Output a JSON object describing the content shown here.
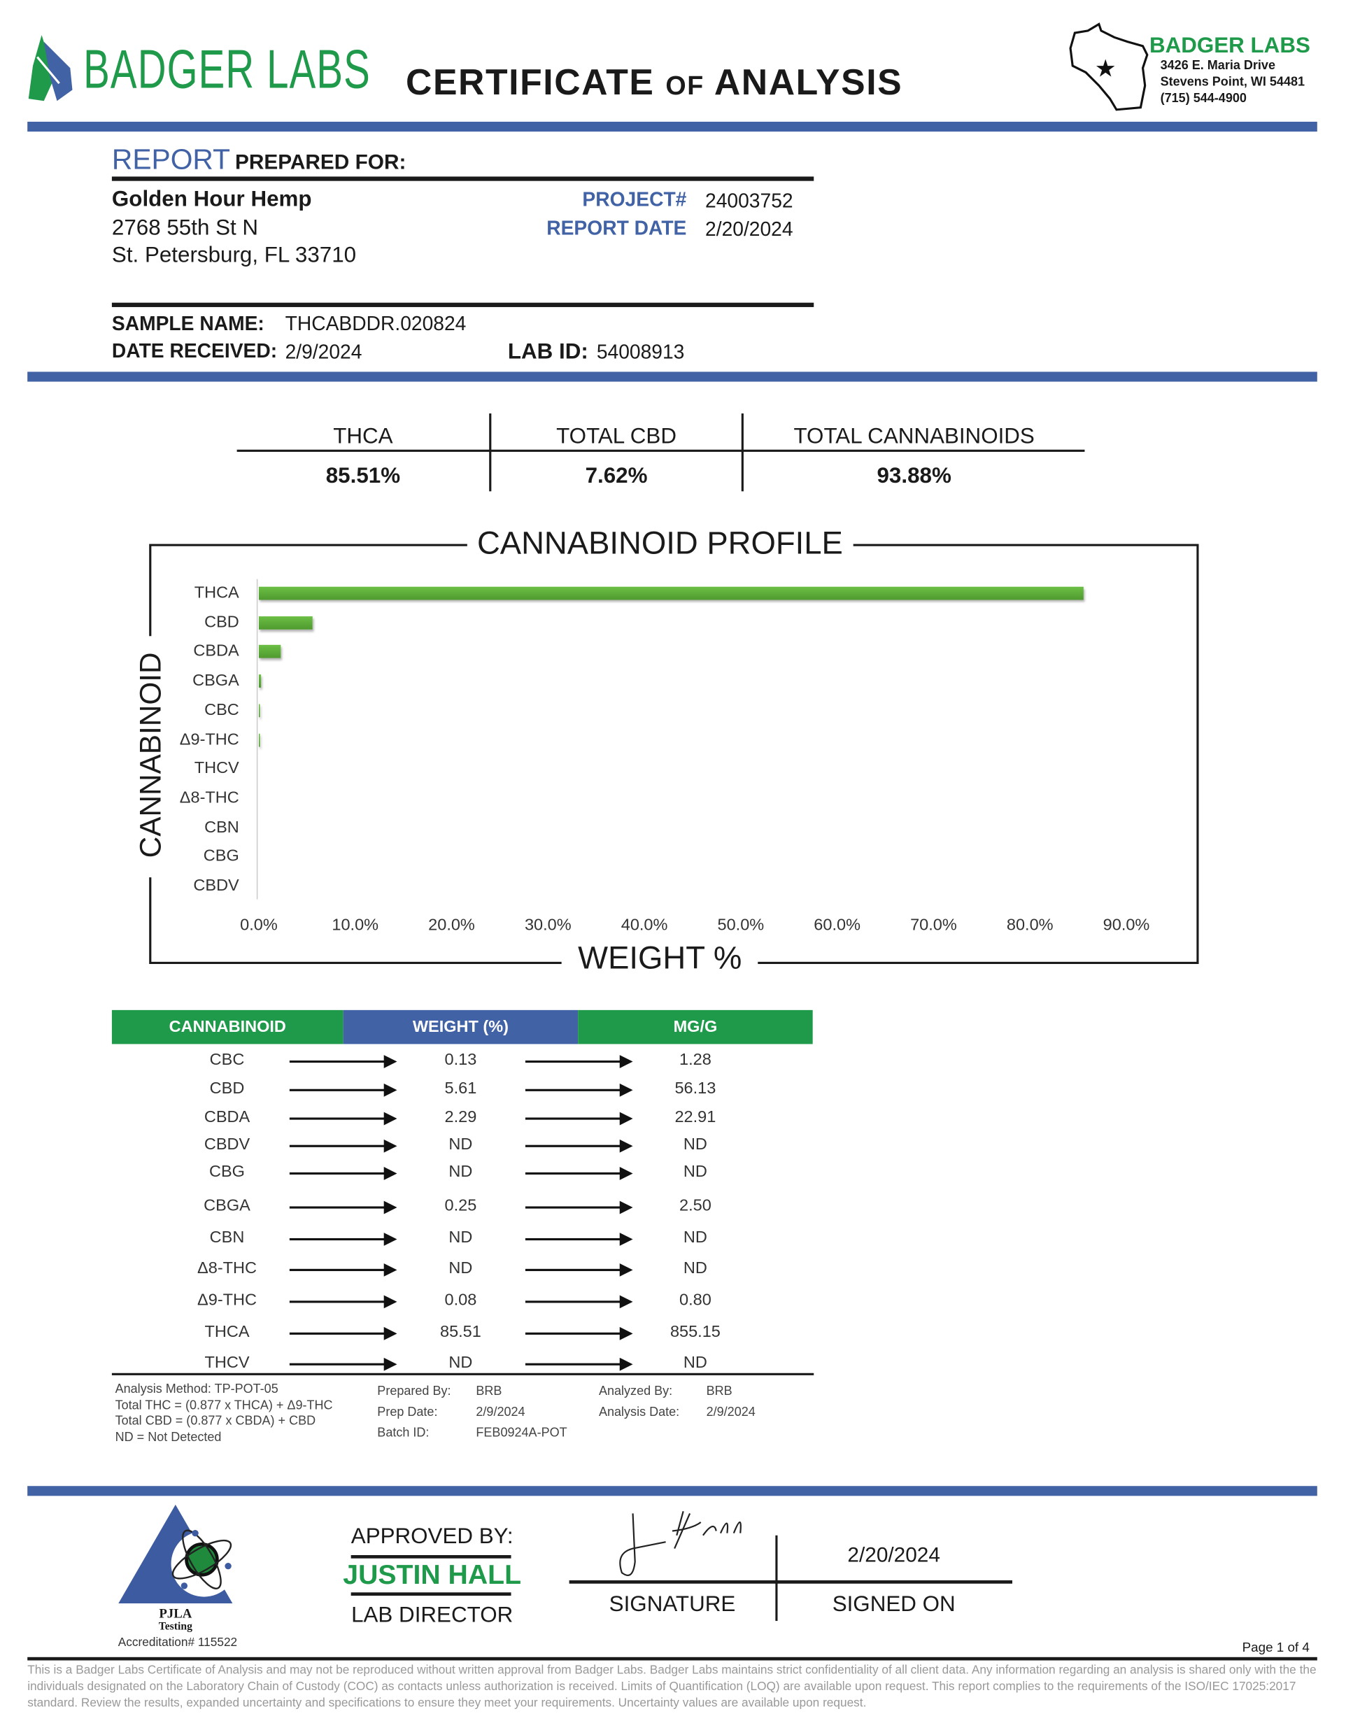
{
  "header": {
    "brand": "BADGER LABS",
    "title_part1": "CERTIFICATE",
    "title_part2": "of",
    "title_part3": "ANALYSIS",
    "address_brand": "BADGER LABS",
    "address_line1": "3426 E. Maria Drive",
    "address_line2": "Stevens Point, WI 54481",
    "phone": "(715) 544-4900"
  },
  "report": {
    "heading_accent": "REPORT",
    "heading_rest": "PREPARED FOR:",
    "client_name": "Golden Hour Hemp",
    "client_address1": "2768 55th St N",
    "client_address2": "St. Petersburg, FL 33710",
    "project_label": "PROJECT#",
    "project_value": "24003752",
    "report_date_label": "REPORT DATE",
    "report_date_value": "2/20/2024",
    "sample_name_label": "SAMPLE NAME:",
    "sample_name_value": "THCABDDR.020824",
    "date_received_label": "DATE RECEIVED:",
    "date_received_value": "2/9/2024",
    "lab_id_label": "LAB ID:",
    "lab_id_value": "54008913"
  },
  "summary": [
    {
      "label": "THCA",
      "value": "85.51%"
    },
    {
      "label": "TOTAL CBD",
      "value": "7.62%"
    },
    {
      "label": "TOTAL CANNABINOIDS",
      "value": "93.88%"
    }
  ],
  "chart_data": {
    "type": "bar",
    "orientation": "horizontal",
    "title": "CANNABINOID PROFILE",
    "xlabel": "WEIGHT %",
    "ylabel": "CANNABINOID",
    "categories": [
      "THCA",
      "CBD",
      "CBDA",
      "CBGA",
      "CBC",
      "Δ9-THC",
      "THCV",
      "Δ8-THC",
      "CBN",
      "CBG",
      "CBDV"
    ],
    "values": [
      85.51,
      5.61,
      2.29,
      0.25,
      0.13,
      0.08,
      0,
      0,
      0,
      0,
      0
    ],
    "xlim": [
      0,
      90
    ],
    "xticks": [
      "0.0%",
      "10.0%",
      "20.0%",
      "30.0%",
      "40.0%",
      "50.0%",
      "60.0%",
      "70.0%",
      "80.0%",
      "90.0%"
    ],
    "bar_color": "#5fae3a"
  },
  "table": {
    "headers": [
      "CANNABINOID",
      "WEIGHT (%)",
      "MG/G"
    ],
    "header_colors": [
      "#1e9a4a",
      "#4262a6",
      "#1e9a4a"
    ],
    "rows": [
      [
        "CBC",
        "0.13",
        "1.28"
      ],
      [
        "CBD",
        "5.61",
        "56.13"
      ],
      [
        "CBDA",
        "2.29",
        "22.91"
      ],
      [
        "CBDV",
        "ND",
        "ND"
      ],
      [
        "CBG",
        "ND",
        "ND"
      ],
      [
        "CBGA",
        "0.25",
        "2.50"
      ],
      [
        "CBN",
        "ND",
        "ND"
      ],
      [
        "Δ8-THC",
        "ND",
        "ND"
      ],
      [
        "Δ9-THC",
        "0.08",
        "0.80"
      ],
      [
        "THCA",
        "85.51",
        "855.15"
      ],
      [
        "THCV",
        "ND",
        "ND"
      ]
    ]
  },
  "notes": {
    "method": "Analysis Method: TP-POT-05",
    "total_thc": "Total THC = (0.877 x THCA) + Δ9-THC",
    "total_cbd": "Total CBD = (0.877 x CBDA) + CBD",
    "nd": "ND = Not Detected",
    "prepared_by_label": "Prepared By:",
    "prepared_by": "BRB",
    "prep_date_label": "Prep Date:",
    "prep_date": "2/9/2024",
    "batch_label": "Batch ID:",
    "batch": "FEB0924A-POT",
    "analyzed_by_label": "Analyzed By:",
    "analyzed_by": "BRB",
    "analysis_date_label": "Analysis Date:",
    "analysis_date": "2/9/2024"
  },
  "footer": {
    "pjla": "PJLA",
    "pjla_sub": "Testing",
    "accreditation": "Accreditation# 115522",
    "approved_by": "APPROVED BY:",
    "approver_name": "JUSTIN HALL",
    "approver_title": "LAB DIRECTOR",
    "signature_label": "SIGNATURE",
    "signed_on_label": "SIGNED ON",
    "signed_on_value": "2/20/2024",
    "page": "Page 1 of 4",
    "disclaimer": "This is a Badger Labs Certificate of Analysis and may not be reproduced without written approval from Badger Labs. Badger Labs maintains strict confidentiality of all client data. Any information regarding an analysis is shared only with the the individuals designated on the Laboratory Chain of Custody (COC) as contacts unless authorization is received. Limits of Quantification (LOQ) are available upon request. This report complies to the requirements of the ISO/IEC 17025:2017 standard. Review the results, expanded uncertainty and specifications to ensure they meet your requirements. Uncertainty values are available upon request."
  }
}
